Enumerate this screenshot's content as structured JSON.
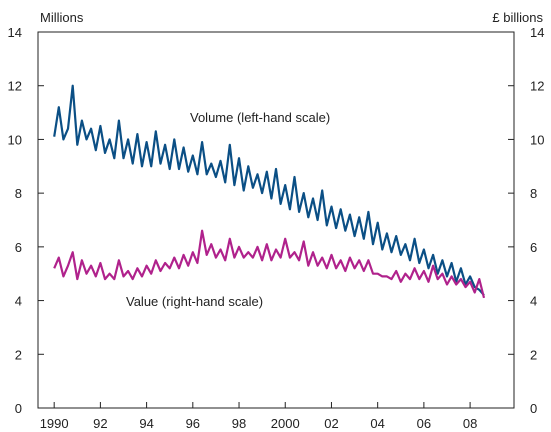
{
  "chart_data": {
    "type": "line",
    "left_axis_label": "Millions",
    "right_axis_label": "£ billions",
    "ylim_left": [
      0,
      14
    ],
    "ylim_right": [
      0,
      14
    ],
    "y_ticks": [
      "0",
      "2",
      "4",
      "6",
      "8",
      "10",
      "12",
      "14"
    ],
    "x_tick_labels": [
      "1990",
      "92",
      "94",
      "96",
      "98",
      "2000",
      "02",
      "04",
      "06",
      "08"
    ],
    "x_tick_years": [
      1990,
      1992,
      1994,
      1996,
      1998,
      2000,
      2002,
      2004,
      2006,
      2008
    ],
    "xlim": [
      1989.3,
      2009.9
    ],
    "grid": false,
    "annotations": [
      {
        "text": "Volume (left-hand scale)",
        "series": "volume"
      },
      {
        "text": "Value (right-hand scale)",
        "series": "value"
      }
    ],
    "series": [
      {
        "key": "volume",
        "axis": "left",
        "color": "#0b4f85",
        "x": [
          1990.0,
          1990.2,
          1990.4,
          1990.6,
          1990.8,
          1991.0,
          1991.2,
          1991.4,
          1991.6,
          1991.8,
          1992.0,
          1992.2,
          1992.4,
          1992.6,
          1992.8,
          1993.0,
          1993.2,
          1993.4,
          1993.6,
          1993.8,
          1994.0,
          1994.2,
          1994.4,
          1994.6,
          1994.8,
          1995.0,
          1995.2,
          1995.4,
          1995.6,
          1995.8,
          1996.0,
          1996.2,
          1996.4,
          1996.6,
          1996.8,
          1997.0,
          1997.2,
          1997.4,
          1997.6,
          1997.8,
          1998.0,
          1998.2,
          1998.4,
          1998.6,
          1998.8,
          1999.0,
          1999.2,
          1999.4,
          1999.6,
          1999.8,
          2000.0,
          2000.2,
          2000.4,
          2000.6,
          2000.8,
          2001.0,
          2001.2,
          2001.4,
          2001.6,
          2001.8,
          2002.0,
          2002.2,
          2002.4,
          2002.6,
          2002.8,
          2003.0,
          2003.2,
          2003.4,
          2003.6,
          2003.8,
          2004.0,
          2004.2,
          2004.4,
          2004.6,
          2004.8,
          2005.0,
          2005.2,
          2005.4,
          2005.6,
          2005.8,
          2006.0,
          2006.2,
          2006.4,
          2006.6,
          2006.8,
          2007.0,
          2007.2,
          2007.4,
          2007.6,
          2007.8,
          2008.0,
          2008.2,
          2008.4,
          2008.6
        ],
        "values": [
          10.1,
          11.2,
          10.0,
          10.4,
          12.0,
          9.8,
          10.7,
          10.0,
          10.4,
          9.6,
          10.5,
          9.5,
          10.0,
          9.3,
          10.7,
          9.3,
          10.0,
          9.1,
          10.2,
          9.0,
          9.9,
          9.0,
          10.3,
          9.1,
          9.8,
          8.9,
          10.0,
          8.9,
          9.7,
          8.8,
          9.4,
          8.7,
          9.9,
          8.7,
          9.1,
          8.6,
          9.2,
          8.4,
          9.8,
          8.3,
          9.3,
          8.1,
          9.0,
          8.2,
          8.7,
          8.0,
          8.8,
          7.8,
          8.9,
          7.6,
          8.3,
          7.4,
          8.6,
          7.3,
          8.0,
          7.1,
          7.8,
          7.0,
          8.1,
          6.8,
          7.5,
          6.7,
          7.4,
          6.6,
          7.2,
          6.4,
          7.1,
          6.3,
          7.3,
          6.1,
          6.9,
          5.9,
          6.5,
          5.8,
          6.4,
          5.7,
          6.1,
          5.5,
          6.3,
          5.4,
          5.9,
          5.2,
          5.7,
          5.0,
          5.5,
          4.9,
          5.4,
          4.7,
          5.2,
          4.6,
          4.9,
          4.5,
          4.4,
          4.2
        ]
      },
      {
        "key": "value",
        "axis": "right",
        "color": "#b0228c",
        "x": [
          1990.0,
          1990.2,
          1990.4,
          1990.6,
          1990.8,
          1991.0,
          1991.2,
          1991.4,
          1991.6,
          1991.8,
          1992.0,
          1992.2,
          1992.4,
          1992.6,
          1992.8,
          1993.0,
          1993.2,
          1993.4,
          1993.6,
          1993.8,
          1994.0,
          1994.2,
          1994.4,
          1994.6,
          1994.8,
          1995.0,
          1995.2,
          1995.4,
          1995.6,
          1995.8,
          1996.0,
          1996.2,
          1996.4,
          1996.6,
          1996.8,
          1997.0,
          1997.2,
          1997.4,
          1997.6,
          1997.8,
          1998.0,
          1998.2,
          1998.4,
          1998.6,
          1998.8,
          1999.0,
          1999.2,
          1999.4,
          1999.6,
          1999.8,
          2000.0,
          2000.2,
          2000.4,
          2000.6,
          2000.8,
          2001.0,
          2001.2,
          2001.4,
          2001.6,
          2001.8,
          2002.0,
          2002.2,
          2002.4,
          2002.6,
          2002.8,
          2003.0,
          2003.2,
          2003.4,
          2003.6,
          2003.8,
          2004.0,
          2004.2,
          2004.4,
          2004.6,
          2004.8,
          2005.0,
          2005.2,
          2005.4,
          2005.6,
          2005.8,
          2006.0,
          2006.2,
          2006.4,
          2006.6,
          2006.8,
          2007.0,
          2007.2,
          2007.4,
          2007.6,
          2007.8,
          2008.0,
          2008.2,
          2008.4,
          2008.6
        ],
        "values": [
          5.2,
          5.6,
          4.9,
          5.3,
          5.8,
          4.8,
          5.5,
          5.0,
          5.3,
          4.9,
          5.4,
          4.8,
          5.0,
          4.8,
          5.5,
          4.9,
          5.1,
          4.8,
          5.2,
          4.9,
          5.3,
          5.0,
          5.5,
          5.1,
          5.4,
          5.2,
          5.6,
          5.2,
          5.7,
          5.3,
          5.8,
          5.4,
          6.6,
          5.7,
          6.1,
          5.6,
          5.9,
          5.5,
          6.3,
          5.6,
          6.0,
          5.6,
          5.8,
          5.6,
          6.0,
          5.5,
          6.1,
          5.5,
          5.9,
          5.6,
          6.3,
          5.6,
          5.8,
          5.5,
          6.2,
          5.3,
          5.8,
          5.3,
          5.6,
          5.2,
          5.7,
          5.2,
          5.5,
          5.1,
          5.6,
          5.2,
          5.5,
          5.1,
          5.5,
          5.0,
          5.0,
          4.9,
          4.9,
          4.8,
          5.1,
          4.7,
          5.0,
          4.8,
          5.2,
          4.8,
          5.1,
          4.7,
          5.3,
          4.8,
          5.0,
          4.6,
          4.9,
          4.6,
          4.8,
          4.5,
          4.7,
          4.3,
          4.8,
          4.1
        ]
      }
    ]
  }
}
